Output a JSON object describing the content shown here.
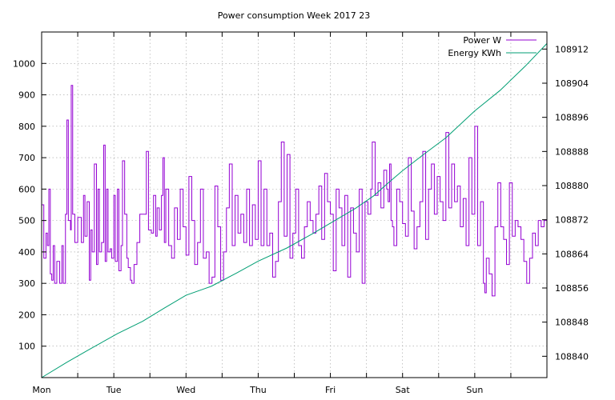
{
  "chart_data": {
    "type": "line",
    "title": "Power consumption Week 2017 23",
    "xlabel": "",
    "ylabel": "",
    "x_categories": [
      "Mon",
      "Tue",
      "Wed",
      "Thu",
      "Fri",
      "Sat",
      "Sun"
    ],
    "x_range_days": [
      0,
      7
    ],
    "y_left_range": [
      0,
      1100
    ],
    "y_left_ticks": [
      100,
      200,
      300,
      400,
      500,
      600,
      700,
      800,
      900,
      1000
    ],
    "y_right_range": [
      108835,
      108916
    ],
    "y_right_ticks": [
      108840,
      108848,
      108856,
      108864,
      108872,
      108880,
      108888,
      108896,
      108904,
      108912
    ],
    "grid": true,
    "legend_position": "top-right",
    "series": [
      {
        "name": "Power W",
        "axis": "left",
        "color": "#9400d3",
        "step": true,
        "points": [
          [
            0.0,
            550
          ],
          [
            0.03,
            380
          ],
          [
            0.06,
            460
          ],
          [
            0.08,
            420
          ],
          [
            0.1,
            600
          ],
          [
            0.12,
            330
          ],
          [
            0.14,
            310
          ],
          [
            0.16,
            420
          ],
          [
            0.18,
            300
          ],
          [
            0.21,
            370
          ],
          [
            0.25,
            300
          ],
          [
            0.28,
            420
          ],
          [
            0.3,
            300
          ],
          [
            0.33,
            520
          ],
          [
            0.35,
            820
          ],
          [
            0.37,
            500
          ],
          [
            0.4,
            470
          ],
          [
            0.41,
            930
          ],
          [
            0.43,
            520
          ],
          [
            0.46,
            430
          ],
          [
            0.5,
            510
          ],
          [
            0.55,
            430
          ],
          [
            0.58,
            580
          ],
          [
            0.6,
            450
          ],
          [
            0.63,
            560
          ],
          [
            0.66,
            310
          ],
          [
            0.68,
            470
          ],
          [
            0.7,
            400
          ],
          [
            0.73,
            680
          ],
          [
            0.76,
            360
          ],
          [
            0.78,
            600
          ],
          [
            0.8,
            400
          ],
          [
            0.83,
            430
          ],
          [
            0.86,
            740
          ],
          [
            0.88,
            370
          ],
          [
            0.9,
            600
          ],
          [
            0.92,
            400
          ],
          [
            0.95,
            410
          ],
          [
            0.97,
            380
          ],
          [
            1.0,
            580
          ],
          [
            1.02,
            370
          ],
          [
            1.05,
            600
          ],
          [
            1.07,
            340
          ],
          [
            1.1,
            420
          ],
          [
            1.12,
            690
          ],
          [
            1.15,
            520
          ],
          [
            1.18,
            380
          ],
          [
            1.2,
            350
          ],
          [
            1.23,
            310
          ],
          [
            1.25,
            300
          ],
          [
            1.28,
            360
          ],
          [
            1.32,
            430
          ],
          [
            1.36,
            520
          ],
          [
            1.4,
            520
          ],
          [
            1.45,
            720
          ],
          [
            1.48,
            470
          ],
          [
            1.52,
            460
          ],
          [
            1.55,
            580
          ],
          [
            1.58,
            450
          ],
          [
            1.6,
            540
          ],
          [
            1.63,
            470
          ],
          [
            1.66,
            580
          ],
          [
            1.68,
            700
          ],
          [
            1.7,
            430
          ],
          [
            1.72,
            600
          ],
          [
            1.76,
            420
          ],
          [
            1.8,
            380
          ],
          [
            1.84,
            540
          ],
          [
            1.88,
            440
          ],
          [
            1.92,
            600
          ],
          [
            1.96,
            480
          ],
          [
            2.0,
            390
          ],
          [
            2.04,
            640
          ],
          [
            2.08,
            500
          ],
          [
            2.12,
            360
          ],
          [
            2.16,
            430
          ],
          [
            2.2,
            600
          ],
          [
            2.24,
            380
          ],
          [
            2.28,
            400
          ],
          [
            2.32,
            300
          ],
          [
            2.36,
            320
          ],
          [
            2.4,
            610
          ],
          [
            2.44,
            480
          ],
          [
            2.48,
            310
          ],
          [
            2.52,
            400
          ],
          [
            2.56,
            540
          ],
          [
            2.6,
            680
          ],
          [
            2.64,
            420
          ],
          [
            2.68,
            580
          ],
          [
            2.72,
            460
          ],
          [
            2.76,
            520
          ],
          [
            2.8,
            430
          ],
          [
            2.84,
            600
          ],
          [
            2.88,
            420
          ],
          [
            2.92,
            550
          ],
          [
            2.96,
            440
          ],
          [
            3.0,
            690
          ],
          [
            3.04,
            420
          ],
          [
            3.08,
            600
          ],
          [
            3.12,
            420
          ],
          [
            3.16,
            460
          ],
          [
            3.2,
            320
          ],
          [
            3.24,
            370
          ],
          [
            3.28,
            560
          ],
          [
            3.32,
            750
          ],
          [
            3.36,
            450
          ],
          [
            3.4,
            710
          ],
          [
            3.44,
            380
          ],
          [
            3.48,
            460
          ],
          [
            3.52,
            600
          ],
          [
            3.56,
            420
          ],
          [
            3.6,
            380
          ],
          [
            3.64,
            480
          ],
          [
            3.68,
            560
          ],
          [
            3.72,
            500
          ],
          [
            3.76,
            460
          ],
          [
            3.8,
            520
          ],
          [
            3.84,
            610
          ],
          [
            3.88,
            440
          ],
          [
            3.92,
            650
          ],
          [
            3.96,
            560
          ],
          [
            4.0,
            520
          ],
          [
            4.04,
            340
          ],
          [
            4.08,
            600
          ],
          [
            4.12,
            540
          ],
          [
            4.16,
            420
          ],
          [
            4.2,
            580
          ],
          [
            4.24,
            320
          ],
          [
            4.28,
            540
          ],
          [
            4.32,
            460
          ],
          [
            4.36,
            400
          ],
          [
            4.4,
            600
          ],
          [
            4.44,
            300
          ],
          [
            4.48,
            560
          ],
          [
            4.52,
            520
          ],
          [
            4.56,
            600
          ],
          [
            4.58,
            750
          ],
          [
            4.62,
            580
          ],
          [
            4.66,
            620
          ],
          [
            4.7,
            540
          ],
          [
            4.74,
            660
          ],
          [
            4.78,
            600
          ],
          [
            4.8,
            560
          ],
          [
            4.82,
            680
          ],
          [
            4.84,
            500
          ],
          [
            4.86,
            480
          ],
          [
            4.88,
            420
          ],
          [
            4.92,
            600
          ],
          [
            4.96,
            560
          ],
          [
            5.0,
            490
          ],
          [
            5.04,
            450
          ],
          [
            5.08,
            700
          ],
          [
            5.12,
            530
          ],
          [
            5.16,
            410
          ],
          [
            5.2,
            480
          ],
          [
            5.24,
            560
          ],
          [
            5.28,
            720
          ],
          [
            5.32,
            440
          ],
          [
            5.36,
            600
          ],
          [
            5.4,
            680
          ],
          [
            5.44,
            520
          ],
          [
            5.48,
            640
          ],
          [
            5.52,
            560
          ],
          [
            5.56,
            500
          ],
          [
            5.6,
            780
          ],
          [
            5.64,
            540
          ],
          [
            5.68,
            680
          ],
          [
            5.72,
            560
          ],
          [
            5.76,
            610
          ],
          [
            5.8,
            480
          ],
          [
            5.84,
            570
          ],
          [
            5.88,
            420
          ],
          [
            5.92,
            700
          ],
          [
            5.96,
            520
          ],
          [
            6.0,
            800
          ],
          [
            6.04,
            420
          ],
          [
            6.08,
            560
          ],
          [
            6.12,
            300
          ],
          [
            6.14,
            270
          ],
          [
            6.16,
            380
          ],
          [
            6.2,
            330
          ],
          [
            6.24,
            260
          ],
          [
            6.28,
            480
          ],
          [
            6.32,
            620
          ],
          [
            6.36,
            480
          ],
          [
            6.4,
            440
          ],
          [
            6.44,
            360
          ],
          [
            6.48,
            620
          ],
          [
            6.52,
            450
          ],
          [
            6.56,
            500
          ],
          [
            6.6,
            480
          ],
          [
            6.64,
            440
          ],
          [
            6.68,
            370
          ],
          [
            6.72,
            300
          ],
          [
            6.76,
            380
          ],
          [
            6.8,
            460
          ],
          [
            6.84,
            420
          ],
          [
            6.88,
            500
          ],
          [
            6.92,
            480
          ],
          [
            6.96,
            500
          ],
          [
            7.0,
            500
          ]
        ]
      },
      {
        "name": "Energy KWh",
        "axis": "right",
        "color": "#009e73",
        "step": false,
        "points": [
          [
            0.0,
            108835.0
          ],
          [
            0.35,
            108838.6
          ],
          [
            0.65,
            108841.5
          ],
          [
            1.05,
            108845.3
          ],
          [
            1.4,
            108848.2
          ],
          [
            1.7,
            108851.3
          ],
          [
            2.0,
            108854.3
          ],
          [
            2.35,
            108856.4
          ],
          [
            2.7,
            108859.5
          ],
          [
            3.0,
            108862.3
          ],
          [
            3.4,
            108865.4
          ],
          [
            3.75,
            108868.7
          ],
          [
            4.0,
            108871.2
          ],
          [
            4.35,
            108874.7
          ],
          [
            4.6,
            108877.6
          ],
          [
            4.8,
            108880.6
          ],
          [
            5.0,
            108883.5
          ],
          [
            5.3,
            108887.4
          ],
          [
            5.6,
            108891.2
          ],
          [
            6.0,
            108897.5
          ],
          [
            6.35,
            108902.3
          ],
          [
            6.7,
            108908.0
          ],
          [
            7.0,
            108913.3
          ]
        ]
      }
    ]
  }
}
